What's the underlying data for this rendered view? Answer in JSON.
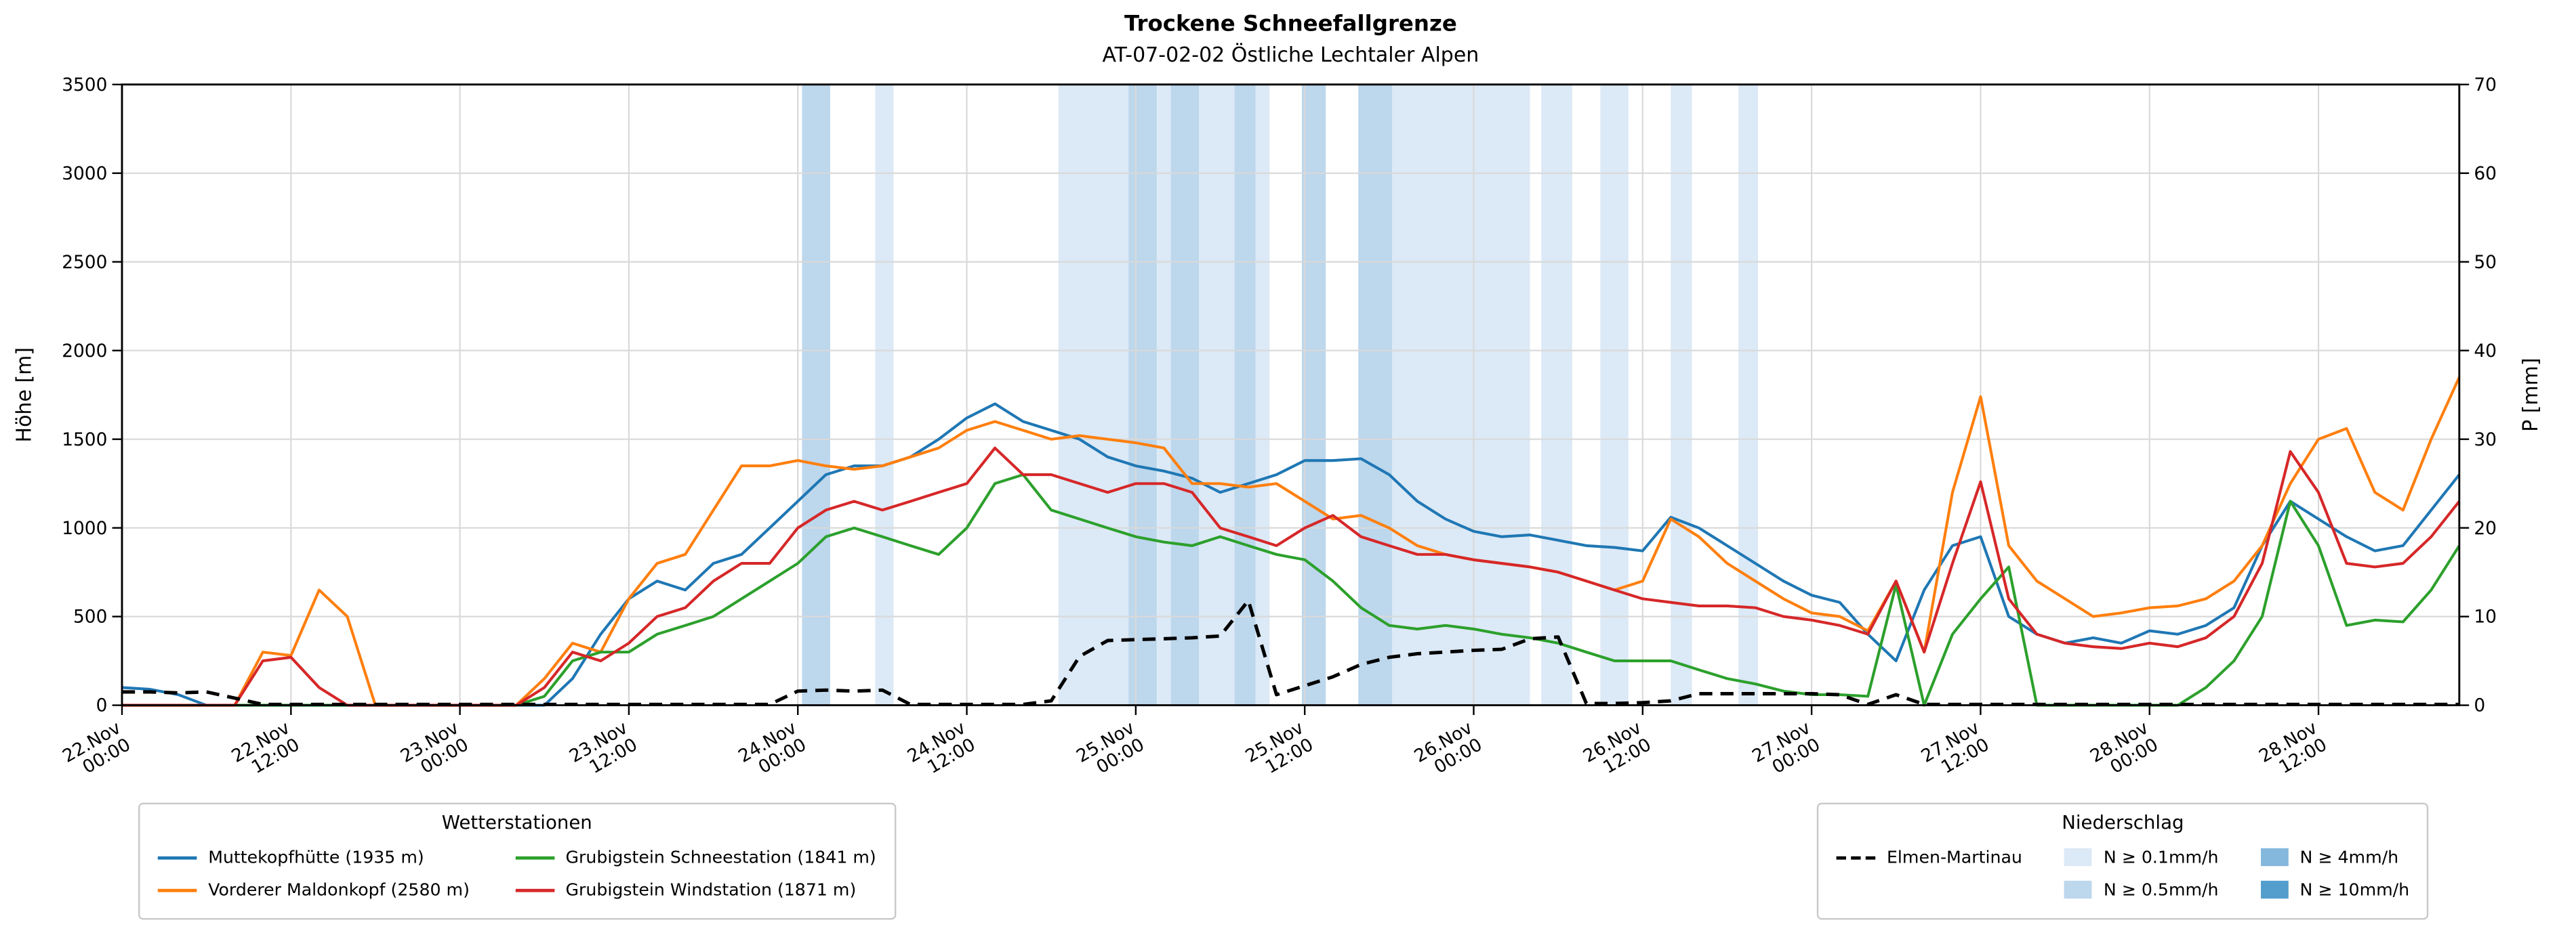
{
  "title": "Trockene Schneefallgrenze",
  "subtitle": "AT-07-02-02 Östliche Lechtaler Alpen",
  "axes": {
    "y_left_label": "Höhe [m]",
    "y_right_label": "P [mm]",
    "y_left_ticks": [
      0,
      500,
      1000,
      1500,
      2000,
      2500,
      3000,
      3500
    ],
    "y_right_ticks": [
      0,
      10,
      20,
      30,
      40,
      50,
      60,
      70
    ],
    "x_ticks": [
      {
        "t": 0,
        "date": "22.Nov",
        "time": "00:00"
      },
      {
        "t": 12,
        "date": "22.Nov",
        "time": "12:00"
      },
      {
        "t": 24,
        "date": "23.Nov",
        "time": "00:00"
      },
      {
        "t": 36,
        "date": "23.Nov",
        "time": "12:00"
      },
      {
        "t": 48,
        "date": "24.Nov",
        "time": "00:00"
      },
      {
        "t": 60,
        "date": "24.Nov",
        "time": "12:00"
      },
      {
        "t": 72,
        "date": "25.Nov",
        "time": "00:00"
      },
      {
        "t": 84,
        "date": "25.Nov",
        "time": "12:00"
      },
      {
        "t": 96,
        "date": "26.Nov",
        "time": "00:00"
      },
      {
        "t": 108,
        "date": "26.Nov",
        "time": "12:00"
      },
      {
        "t": 120,
        "date": "27.Nov",
        "time": "00:00"
      },
      {
        "t": 132,
        "date": "27.Nov",
        "time": "12:00"
      },
      {
        "t": 144,
        "date": "28.Nov",
        "time": "00:00"
      },
      {
        "t": 156,
        "date": "28.Nov",
        "time": "12:00"
      }
    ]
  },
  "chart_data": {
    "type": "line",
    "title": "Trockene Schneefallgrenze",
    "subtitle": "AT-07-02-02 Östliche Lechtaler Alpen",
    "x_unit": "hours since 22 Nov 00:00",
    "x_range": [
      0,
      166
    ],
    "ylim_left": [
      0,
      3500
    ],
    "ylim_right": [
      0,
      70
    ],
    "grid": true,
    "x": [
      0,
      2,
      4,
      6,
      8,
      10,
      12,
      14,
      16,
      18,
      20,
      22,
      24,
      26,
      28,
      30,
      32,
      34,
      36,
      38,
      40,
      42,
      44,
      46,
      48,
      50,
      52,
      54,
      56,
      58,
      60,
      62,
      64,
      66,
      68,
      70,
      72,
      74,
      76,
      78,
      80,
      82,
      84,
      86,
      88,
      90,
      92,
      94,
      96,
      98,
      100,
      102,
      104,
      106,
      108,
      110,
      112,
      114,
      116,
      118,
      120,
      122,
      124,
      126,
      128,
      130,
      132,
      134,
      136,
      138,
      140,
      142,
      144,
      146,
      148,
      150,
      152,
      154,
      156,
      158,
      160,
      162,
      164,
      166
    ],
    "series": [
      {
        "name": "Muttekopfhütte (1935 m)",
        "color": "#1f77b4",
        "axis": "left",
        "dashed": false,
        "values": [
          100,
          90,
          60,
          0,
          0,
          0,
          0,
          0,
          0,
          0,
          0,
          0,
          0,
          0,
          0,
          0,
          150,
          400,
          600,
          700,
          650,
          800,
          850,
          1000,
          1150,
          1300,
          1350,
          1350,
          1400,
          1500,
          1620,
          1700,
          1600,
          1550,
          1500,
          1400,
          1350,
          1320,
          1280,
          1200,
          1250,
          1300,
          1380,
          1380,
          1390,
          1300,
          1150,
          1050,
          980,
          950,
          960,
          930,
          900,
          890,
          870,
          1060,
          1000,
          900,
          800,
          700,
          620,
          580,
          400,
          250,
          650,
          900,
          950,
          500,
          400,
          350,
          380,
          350,
          420,
          400,
          450,
          550,
          900,
          1150,
          1050,
          950,
          870,
          900,
          1100,
          1300
        ]
      },
      {
        "name": "Vorderer Maldonkopf (2580 m)",
        "color": "#ff7f0e",
        "axis": "left",
        "dashed": false,
        "values": [
          0,
          0,
          0,
          0,
          0,
          300,
          280,
          650,
          500,
          0,
          0,
          0,
          0,
          0,
          0,
          150,
          350,
          300,
          600,
          800,
          850,
          1100,
          1350,
          1350,
          1380,
          1350,
          1330,
          1350,
          1400,
          1450,
          1550,
          1600,
          1550,
          1500,
          1520,
          1500,
          1480,
          1450,
          1250,
          1250,
          1230,
          1250,
          1150,
          1050,
          1070,
          1000,
          900,
          850,
          820,
          800,
          780,
          750,
          700,
          650,
          700,
          1050,
          950,
          800,
          700,
          600,
          520,
          500,
          420,
          700,
          300,
          1200,
          1740,
          900,
          700,
          600,
          500,
          520,
          550,
          560,
          600,
          700,
          900,
          1250,
          1500,
          1560,
          1200,
          1100,
          1500,
          1850
        ]
      },
      {
        "name": "Grubigstein Schneestation (1841 m)",
        "color": "#2ca02c",
        "axis": "left",
        "dashed": false,
        "values": [
          0,
          0,
          0,
          0,
          0,
          0,
          0,
          0,
          0,
          0,
          0,
          0,
          0,
          0,
          0,
          50,
          250,
          300,
          300,
          400,
          450,
          500,
          600,
          700,
          800,
          950,
          1000,
          950,
          900,
          850,
          1000,
          1250,
          1300,
          1100,
          1050,
          1000,
          950,
          920,
          900,
          950,
          900,
          850,
          820,
          700,
          550,
          450,
          430,
          450,
          430,
          400,
          380,
          350,
          300,
          250,
          250,
          250,
          200,
          150,
          120,
          80,
          60,
          60,
          50,
          680,
          0,
          400,
          600,
          780,
          0,
          0,
          0,
          0,
          0,
          0,
          100,
          250,
          500,
          1150,
          900,
          450,
          480,
          470,
          650,
          900
        ]
      },
      {
        "name": "Grubigstein Windstation (1871 m)",
        "color": "#d62728",
        "axis": "left",
        "dashed": false,
        "values": [
          0,
          0,
          0,
          0,
          0,
          250,
          270,
          100,
          0,
          0,
          0,
          0,
          0,
          0,
          0,
          100,
          300,
          250,
          350,
          500,
          550,
          700,
          800,
          800,
          1000,
          1100,
          1150,
          1100,
          1150,
          1200,
          1250,
          1450,
          1300,
          1300,
          1250,
          1200,
          1250,
          1250,
          1200,
          1000,
          950,
          900,
          1000,
          1070,
          950,
          900,
          850,
          850,
          820,
          800,
          780,
          750,
          700,
          650,
          600,
          580,
          560,
          560,
          550,
          500,
          480,
          450,
          400,
          700,
          300,
          800,
          1260,
          600,
          400,
          350,
          330,
          320,
          350,
          330,
          380,
          500,
          800,
          1430,
          1200,
          800,
          780,
          800,
          950,
          1150
        ]
      },
      {
        "name": "Elmen-Martinau",
        "color": "#000000",
        "axis": "right",
        "dashed": true,
        "values": [
          1.5,
          1.5,
          1.4,
          1.5,
          0.8,
          0.1,
          0.1,
          0.1,
          0.1,
          0.1,
          0.1,
          0.1,
          0.1,
          0.1,
          0.1,
          0.1,
          0.1,
          0.1,
          0.1,
          0.1,
          0.1,
          0.1,
          0.1,
          0.1,
          1.6,
          1.7,
          1.6,
          1.7,
          0.1,
          0.1,
          0.1,
          0.1,
          0.1,
          0.5,
          5.5,
          7.3,
          7.4,
          7.5,
          7.6,
          7.8,
          11.8,
          1.2,
          2.2,
          3.2,
          4.6,
          5.4,
          5.8,
          6,
          6.2,
          6.3,
          7.5,
          7.7,
          0.2,
          0.2,
          0.3,
          0.5,
          1.3,
          1.3,
          1.3,
          1.3,
          1.3,
          1.2,
          0.1,
          1.2,
          0.1,
          0.1,
          0.1,
          0.1,
          0.1,
          0.1,
          0.1,
          0.1,
          0.1,
          0.1,
          0.1,
          0.1,
          0.1,
          0.1,
          0.1,
          0.1,
          0.1,
          0.1,
          0.1,
          0.1
        ]
      }
    ],
    "precip_bands": {
      "levels": {
        "0.1": "#dce9f6",
        "0.5": "#bdd7ec",
        "4": "#85b8dd",
        "10": "#539ecd"
      },
      "bands": [
        [
          48.3,
          50.3,
          "0.5"
        ],
        [
          53.5,
          54.8,
          "0.1"
        ],
        [
          66.5,
          71.5,
          "0.1"
        ],
        [
          71.5,
          73.5,
          "0.5"
        ],
        [
          73.5,
          74.5,
          "0.1"
        ],
        [
          74.5,
          76.5,
          "0.5"
        ],
        [
          76.5,
          79,
          "0.1"
        ],
        [
          79,
          80.5,
          "0.5"
        ],
        [
          80.5,
          81.5,
          "0.1"
        ],
        [
          83.8,
          85.5,
          "0.5"
        ],
        [
          87.8,
          90.2,
          "0.5"
        ],
        [
          90.2,
          100,
          "0.1"
        ],
        [
          100.8,
          103,
          "0.1"
        ],
        [
          105,
          107,
          "0.1"
        ],
        [
          110,
          111.5,
          "0.1"
        ],
        [
          114.8,
          116.2,
          "0.1"
        ]
      ]
    }
  },
  "legend_stations": {
    "title": "Wetterstationen",
    "items": [
      {
        "label": "Muttekopfhütte (1935 m)",
        "color": "#1f77b4"
      },
      {
        "label": "Vorderer Maldonkopf (2580 m)",
        "color": "#ff7f0e"
      },
      {
        "label": "Grubigstein Schneestation (1841 m)",
        "color": "#2ca02c"
      },
      {
        "label": "Grubigstein Windstation (1871 m)",
        "color": "#d62728"
      }
    ]
  },
  "legend_precip": {
    "title": "Niederschlag",
    "line_item": {
      "label": "Elmen-Martinau",
      "color": "#000000"
    },
    "items": [
      {
        "label": "N ≥ 0.1mm/h",
        "color": "#dce9f6"
      },
      {
        "label": "N ≥ 0.5mm/h",
        "color": "#bdd7ec"
      },
      {
        "label": "N ≥ 4mm/h",
        "color": "#85b8dd"
      },
      {
        "label": "N ≥ 10mm/h",
        "color": "#539ecd"
      }
    ]
  }
}
